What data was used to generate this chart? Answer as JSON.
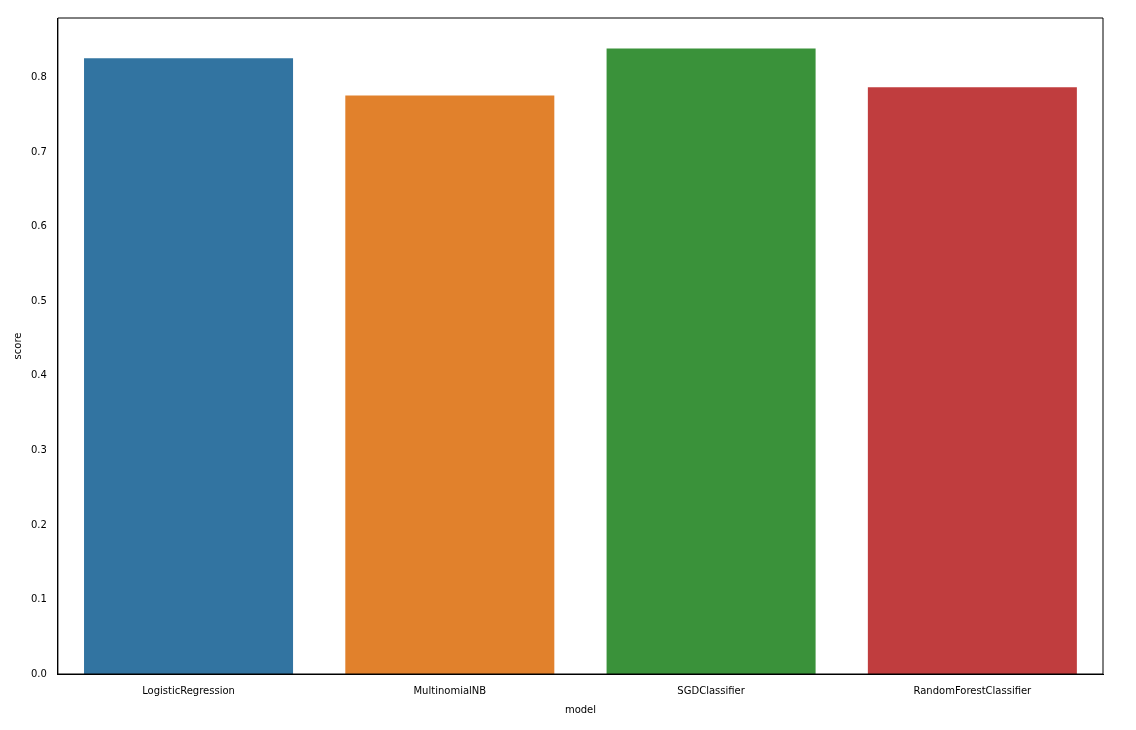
{
  "chart_data": {
    "type": "bar",
    "xlabel": "model",
    "ylabel": "score",
    "categories": [
      "LogisticRegression",
      "MultinomialNB",
      "SGDClassifier",
      "RandomForestClassifier"
    ],
    "values": [
      0.826,
      0.776,
      0.839,
      0.787
    ],
    "colors": [
      "#3274a1",
      "#e1812c",
      "#3a923a",
      "#c03d3e"
    ],
    "ylim": [
      0,
      0.88
    ],
    "yticks": [
      {
        "value": 0,
        "label": "0.0"
      },
      0.1,
      0.2,
      0.3,
      0.4,
      0.5,
      0.6,
      0.7,
      0.8
    ],
    "grid": false,
    "legend": false
  }
}
